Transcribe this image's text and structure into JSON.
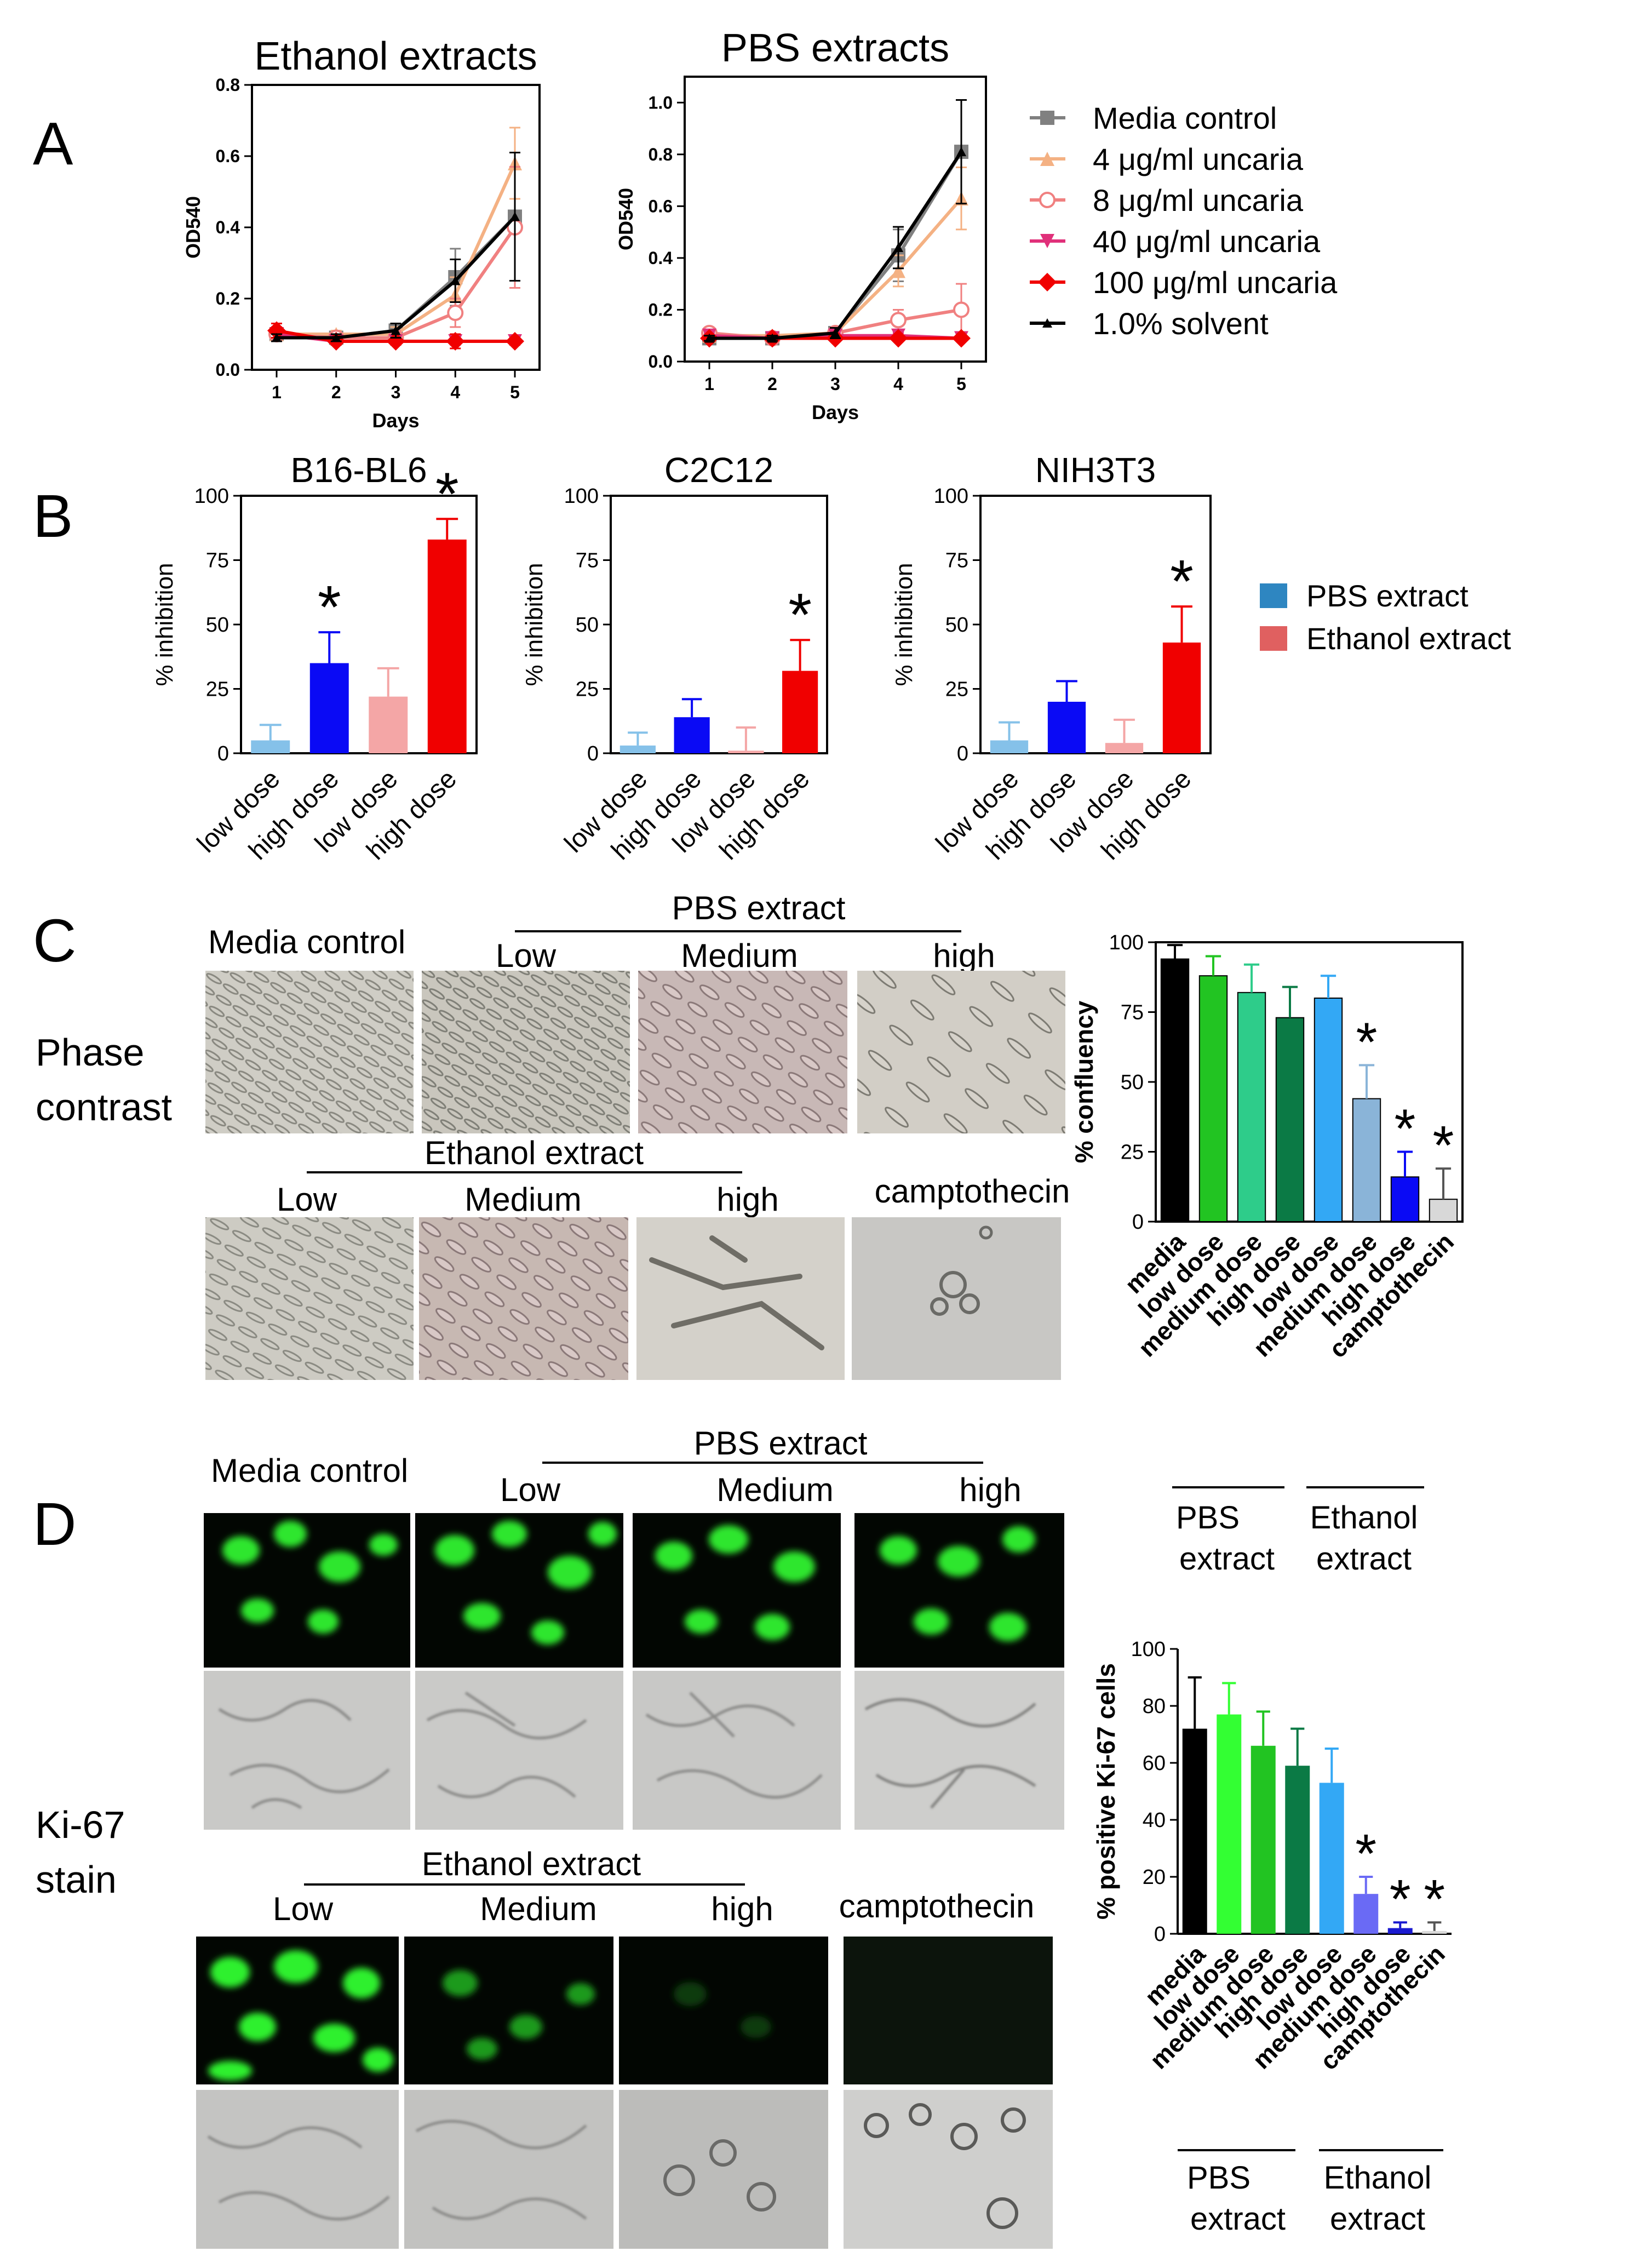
{
  "panels": {
    "A": "A",
    "B": "B",
    "C": "C",
    "D": "D"
  },
  "panel_a": {
    "ylabel": "OD540",
    "xlabel": "Days",
    "legend": [
      {
        "name": "Media control",
        "color": "#808080",
        "marker": "square"
      },
      {
        "name": "4 μg/ml uncaria",
        "color": "#F4B183",
        "marker": "triangle"
      },
      {
        "name": "8 μg/ml uncaria",
        "color": "#F08080",
        "marker": "circle-open"
      },
      {
        "name": "40 μg/ml uncaria",
        "color": "#E0307A",
        "marker": "triangle-down"
      },
      {
        "name": "100 μg/ml uncaria",
        "color": "#F00000",
        "marker": "diamond"
      },
      {
        "name": "1.0% solvent",
        "color": "#000000",
        "marker": "triangle-small"
      }
    ]
  },
  "panel_b": {
    "ylabel": "% inhibition",
    "legend": [
      {
        "name": "PBS extract",
        "color": "#2E86C1"
      },
      {
        "name": "Ethanol extract",
        "color": "#E06060"
      }
    ],
    "star": "*"
  },
  "panel_c": {
    "media_control": "Media control",
    "pbs_extract": "PBS extract",
    "ethanol_extract": "Ethanol extract",
    "low": "Low",
    "medium": "Medium",
    "high": "high",
    "camptothecin": "camptothecin",
    "row_label_1": "Phase",
    "row_label_2": "contrast",
    "chart_ylabel": "% confluency",
    "group_pbs_1": "PBS",
    "group_pbs_2": "extract",
    "group_eth_1": "Ethanol",
    "group_eth_2": "extract",
    "star": "*"
  },
  "panel_d": {
    "media_control": "Media control",
    "pbs_extract": "PBS extract",
    "ethanol_extract": "Ethanol extract",
    "low": "Low",
    "medium": "Medium",
    "high": "high",
    "camptothecin": "camptothecin",
    "row_label_1": "Ki-67",
    "row_label_2": "stain",
    "chart_ylabel": "% positive Ki-67 cells",
    "group_pbs_1": "PBS",
    "group_pbs_2": "extract",
    "group_eth_1": "Ethanol",
    "group_eth_2": "extract",
    "star": "*"
  },
  "chart_data": [
    {
      "id": "ethanol",
      "type": "line",
      "title": "Ethanol extracts",
      "xlabel": "Days",
      "ylabel": "OD540",
      "x": [
        1,
        2,
        3,
        4,
        5
      ],
      "xlim": [
        1,
        5
      ],
      "ylim": [
        0,
        0.8
      ],
      "yticks": [
        "0.0",
        "0.2",
        "0.4",
        "0.6",
        "0.8"
      ],
      "series": [
        {
          "name": "Media control",
          "values": [
            0.1,
            0.09,
            0.11,
            0.26,
            0.43
          ],
          "err": [
            0.01,
            0.01,
            0.02,
            0.08,
            0.18
          ]
        },
        {
          "name": "4 μg/ml uncaria",
          "values": [
            0.1,
            0.1,
            0.1,
            0.21,
            0.58
          ],
          "err": [
            0.01,
            0.01,
            0.02,
            0.05,
            0.1
          ]
        },
        {
          "name": "8 μg/ml uncaria",
          "values": [
            0.1,
            0.09,
            0.09,
            0.16,
            0.4
          ],
          "err": [
            0.01,
            0.01,
            0.02,
            0.04,
            0.17
          ]
        },
        {
          "name": "40 μg/ml uncaria",
          "values": [
            0.1,
            0.08,
            0.08,
            0.08,
            0.08
          ],
          "err": [
            0.02,
            0.01,
            0.01,
            0.01,
            0.01
          ]
        },
        {
          "name": "100 μg/ml uncaria",
          "values": [
            0.11,
            0.08,
            0.08,
            0.08,
            0.08
          ],
          "err": [
            0.02,
            0.01,
            0.01,
            0.02,
            0.01
          ]
        },
        {
          "name": "1.0% solvent",
          "values": [
            0.09,
            0.09,
            0.11,
            0.25,
            0.43
          ],
          "err": [
            0.01,
            0.01,
            0.02,
            0.06,
            0.18
          ]
        }
      ]
    },
    {
      "id": "pbs",
      "type": "line",
      "title": "PBS extracts",
      "xlabel": "Days",
      "ylabel": "OD540",
      "x": [
        1,
        2,
        3,
        4,
        5
      ],
      "xlim": [
        1,
        5
      ],
      "ylim": [
        0,
        1.1
      ],
      "yticks": [
        "0.0",
        "0.2",
        "0.4",
        "0.6",
        "0.8",
        "1.0"
      ],
      "series": [
        {
          "name": "Media control",
          "values": [
            0.09,
            0.09,
            0.11,
            0.41,
            0.81
          ],
          "err": [
            0.01,
            0.01,
            0.02,
            0.1,
            0.2
          ]
        },
        {
          "name": "4 μg/ml uncaria",
          "values": [
            0.1,
            0.1,
            0.11,
            0.35,
            0.63
          ],
          "err": [
            0.01,
            0.01,
            0.02,
            0.06,
            0.12
          ]
        },
        {
          "name": "8 μg/ml uncaria",
          "values": [
            0.11,
            0.09,
            0.11,
            0.16,
            0.2
          ],
          "err": [
            0.02,
            0.01,
            0.02,
            0.04,
            0.1
          ]
        },
        {
          "name": "40 μg/ml uncaria",
          "values": [
            0.1,
            0.09,
            0.1,
            0.1,
            0.09
          ],
          "err": [
            0.01,
            0.01,
            0.01,
            0.01,
            0.01
          ]
        },
        {
          "name": "100 μg/ml uncaria",
          "values": [
            0.09,
            0.09,
            0.09,
            0.09,
            0.09
          ],
          "err": [
            0.01,
            0.01,
            0.01,
            0.01,
            0.01
          ]
        },
        {
          "name": "1.0% solvent",
          "values": [
            0.09,
            0.09,
            0.11,
            0.44,
            0.81
          ],
          "err": [
            0.01,
            0.01,
            0.02,
            0.08,
            0.2
          ]
        }
      ]
    },
    {
      "id": "b16",
      "type": "bar",
      "title": "B16-BL6",
      "ylabel": "% inhibition",
      "ylim": [
        0,
        100
      ],
      "categories": [
        "low dose",
        "high dose",
        "low dose",
        "high dose"
      ],
      "values": [
        5,
        35,
        22,
        83
      ],
      "err": [
        6,
        12,
        11,
        8
      ],
      "colors": [
        "#85C1E9",
        "#0A0AF5",
        "#F4A6A6",
        "#F00000"
      ],
      "significant": [
        false,
        true,
        false,
        true
      ]
    },
    {
      "id": "c2c12",
      "type": "bar",
      "title": "C2C12",
      "ylabel": "% inhibition",
      "ylim": [
        0,
        100
      ],
      "categories": [
        "low dose",
        "high dose",
        "low dose",
        "high dose"
      ],
      "values": [
        3,
        14,
        1,
        32
      ],
      "err": [
        5,
        7,
        9,
        12
      ],
      "colors": [
        "#85C1E9",
        "#0A0AF5",
        "#F4A6A6",
        "#F00000"
      ],
      "significant": [
        false,
        false,
        false,
        true
      ]
    },
    {
      "id": "nih3t3",
      "type": "bar",
      "title": "NIH3T3",
      "ylabel": "% inhibition",
      "ylim": [
        0,
        100
      ],
      "categories": [
        "low dose",
        "high dose",
        "low dose",
        "high dose"
      ],
      "values": [
        5,
        20,
        4,
        43
      ],
      "err": [
        7,
        8,
        9,
        14
      ],
      "colors": [
        "#85C1E9",
        "#0A0AF5",
        "#F4A6A6",
        "#F00000"
      ],
      "significant": [
        false,
        false,
        false,
        true
      ]
    },
    {
      "id": "confluency",
      "type": "bar",
      "ylabel": "% confluency",
      "ylim": [
        0,
        100
      ],
      "categories": [
        "media",
        "low dose",
        "medium dose",
        "high dose",
        "low dose",
        "medium dose",
        "high dose",
        "camptothecin"
      ],
      "values": [
        94,
        88,
        82,
        73,
        80,
        44,
        16,
        8
      ],
      "err": [
        5,
        7,
        10,
        11,
        8,
        12,
        9,
        11
      ],
      "colors": [
        "#000000",
        "#22C422",
        "#2ECC8A",
        "#0B7A45",
        "#33A8F5",
        "#8AB4D8",
        "#0A0AF5",
        "#D8D8D8"
      ],
      "significant": [
        false,
        false,
        false,
        false,
        false,
        true,
        true,
        true
      ]
    },
    {
      "id": "ki67",
      "type": "bar",
      "ylabel": "% positive Ki-67 cells",
      "ylim": [
        0,
        100
      ],
      "categories": [
        "media",
        "low dose",
        "medium dose",
        "high dose",
        "low dose",
        "medium dose",
        "high dose",
        "camptothecin"
      ],
      "values": [
        72,
        77,
        66,
        59,
        53,
        14,
        2,
        1
      ],
      "err": [
        18,
        11,
        12,
        13,
        12,
        6,
        2,
        3
      ],
      "colors": [
        "#000000",
        "#33FF33",
        "#22C422",
        "#0B7A45",
        "#33A8F5",
        "#6A6AF5",
        "#1A1AD0",
        "#D8D8D8"
      ],
      "significant": [
        false,
        false,
        false,
        false,
        false,
        true,
        true,
        true
      ]
    }
  ]
}
